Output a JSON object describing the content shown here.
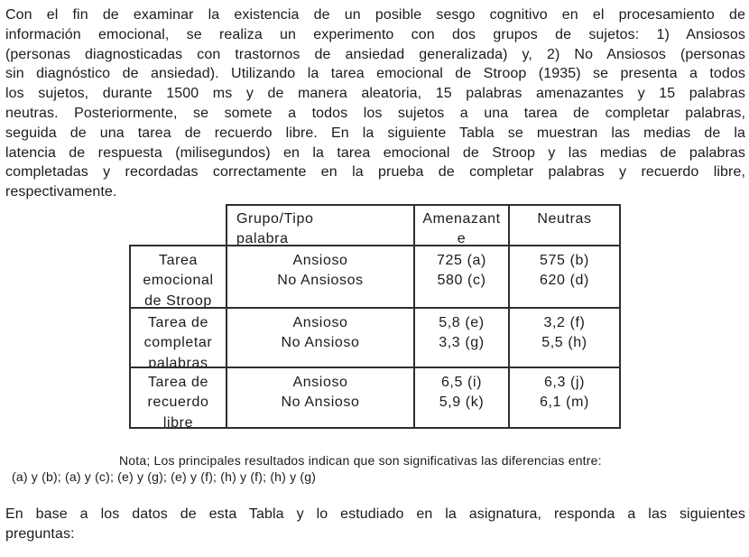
{
  "page": {
    "background": "#ffffff",
    "text_color": "#1b1b1b",
    "border_color": "#2e2e2e",
    "language": "es"
  },
  "intro": {
    "lines": [
      "Con el fin de examinar la existencia de un posible sesgo cognitivo en el procesamiento de",
      "información emocional, se realiza un experimento con dos grupos de sujetos: 1) Ansiosos",
      "(personas diagnosticadas con trastornos de ansiedad generalizada) y, 2) No Ansiosos (personas",
      "sin diagnóstico de ansiedad). Utilizando la tarea emocional de Stroop (1935) se presenta a todos",
      "los sujetos, durante 1500 ms y de manera aleatoria, 15 palabras amenazantes y 15 palabras",
      "neutras. Posteriormente, se somete a todos los sujetos a una tarea de completar palabras,",
      "seguida de una tarea de recuerdo libre. En la siguiente Tabla se muestran las medias de la",
      "latencia de respuesta (milisegundos) en la tarea emocional de Stroop y las medias de palabras",
      "completadas y recordadas correctamente en la prueba de completar palabras y recuerdo libre,",
      "respectivamente."
    ]
  },
  "table": {
    "header": {
      "corner": "",
      "group_col_lines": [
        "Grupo/Tipo",
        "palabra"
      ],
      "amenazante_lines": [
        "Amenazant",
        "e"
      ],
      "neutras": "Neutras"
    },
    "rows": [
      {
        "label_lines": [
          "Tarea",
          "emocional",
          "de Stroop"
        ],
        "group_lines": [
          "Ansioso",
          "No Ansiosos"
        ],
        "amenazante_lines": [
          "725 (a)",
          "580 (c)"
        ],
        "neutras_lines": [
          "575 (b)",
          "620 (d)"
        ]
      },
      {
        "label_lines": [
          "Tarea de",
          "completar",
          "palabras"
        ],
        "group_lines": [
          "Ansioso",
          "No Ansioso"
        ],
        "amenazante_lines": [
          "5,8 (e)",
          "3,3 (g)"
        ],
        "neutras_lines": [
          "3,2 (f)",
          "5,5 (h)"
        ]
      },
      {
        "label_lines": [
          "Tarea de",
          "recuerdo",
          "libre"
        ],
        "group_lines": [
          "Ansioso",
          "No Ansioso"
        ],
        "amenazante_lines": [
          "6,5 (i)",
          "5,9 (k)"
        ],
        "neutras_lines": [
          "6,3 (j)",
          "6,1 (m)"
        ]
      }
    ]
  },
  "note": {
    "line1": "Nota; Los principales resultados indican que son significativas las diferencias entre:",
    "line2": "(a) y (b); (a) y (c); (e) y (g); (e) y (f); (h) y (f); (h) y (g)"
  },
  "closing": {
    "lines": [
      "En base a los datos de esta Tabla y lo estudiado en la asignatura, responda a las siguientes",
      "preguntas:"
    ]
  }
}
